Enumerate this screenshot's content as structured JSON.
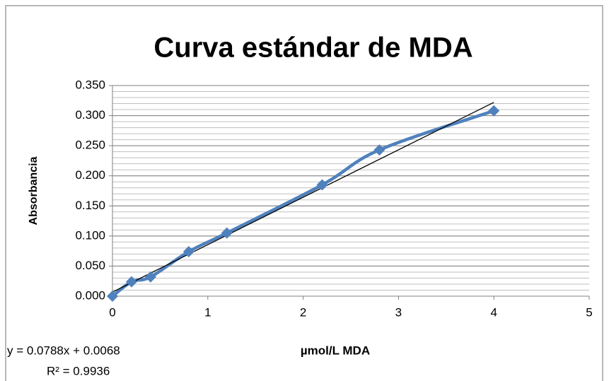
{
  "chart_data": {
    "type": "scatter_smooth",
    "title": "Curva estándar de MDA",
    "x_label": "µmol/L MDA",
    "y_label": "Absorbancia",
    "series": [
      {
        "name": "Absorbancia",
        "color": "#4f81bd",
        "x": [
          0,
          0.2,
          0.4,
          0.8,
          1.2,
          2.2,
          2.8,
          4
        ],
        "values": [
          0,
          0.024,
          0.032,
          0.074,
          0.105,
          0.185,
          0.243,
          0.308
        ]
      }
    ],
    "trendline": {
      "slope": 0.0788,
      "intercept": 0.0068,
      "x_range": [
        0,
        4
      ],
      "color": "#000000",
      "equation": "y = 0.0788x + 0.0068",
      "r_squared": "R² = 0.9936"
    },
    "xlim": [
      0,
      5
    ],
    "xticks": [
      0,
      1,
      2,
      3,
      4,
      5
    ],
    "ylim": [
      0,
      0.35
    ],
    "yticks": [
      {
        "value": 0,
        "label": "0.000"
      },
      {
        "value": 0.05,
        "label": "0.050"
      },
      {
        "value": 0.1,
        "label": "0.100"
      },
      {
        "value": 0.15,
        "label": "0.150"
      },
      {
        "value": 0.2,
        "label": "0.200"
      },
      {
        "value": 0.25,
        "label": "0.250"
      },
      {
        "value": 0.3,
        "label": "0.300"
      },
      {
        "value": 0.35,
        "label": "0.350"
      }
    ],
    "grid": true,
    "minor_grid_step": 0.01
  }
}
